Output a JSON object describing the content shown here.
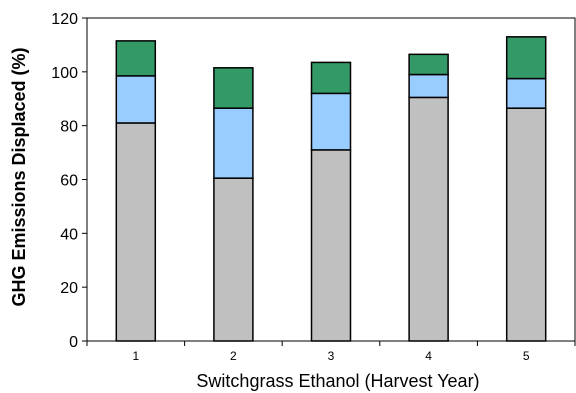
{
  "chart_data": {
    "type": "bar",
    "stacked": true,
    "title": "",
    "xlabel": "Switchgrass Ethanol  (Harvest Year)",
    "ylabel": "GHG Emissions Displaced (%)",
    "categories": [
      "1",
      "2",
      "3",
      "4",
      "5"
    ],
    "ylim": [
      0,
      120
    ],
    "yticks": [
      0,
      20,
      40,
      60,
      80,
      100,
      120
    ],
    "grid": false,
    "legend": "none",
    "series": [
      {
        "values": [
          81,
          60.5,
          71,
          90.5,
          86.5
        ],
        "color": "#c0c0c0"
      },
      {
        "values": [
          17.5,
          26,
          21,
          8.5,
          11
        ],
        "color": "#99ccff"
      },
      {
        "values": [
          13,
          15,
          11.5,
          7.5,
          15.5
        ],
        "color": "#339966"
      }
    ]
  }
}
